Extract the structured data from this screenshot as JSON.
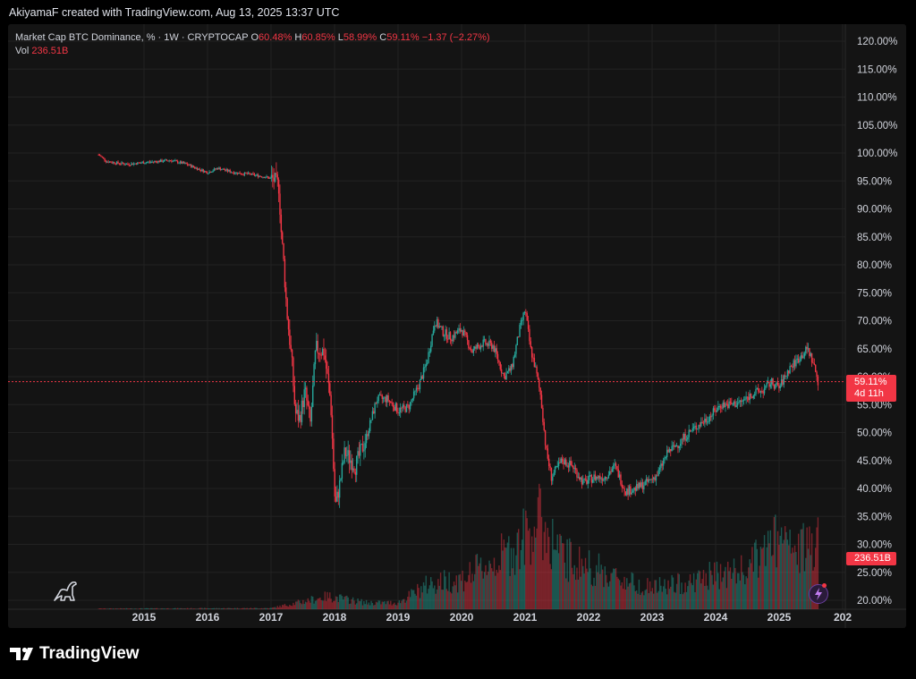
{
  "header": {
    "credit": "AkiyamaF created with TradingView.com, Aug 13, 2025 13:37 UTC"
  },
  "legend": {
    "symbol": "Market Cap BTC Dominance, % · 1W · CRYPTOCAP",
    "o_label": "O",
    "o_value": "60.48%",
    "h_label": "H",
    "h_value": "60.85%",
    "l_label": "L",
    "l_value": "58.99%",
    "c_label": "C",
    "c_value": "59.11%",
    "change": "−1.37 (−2.27%)",
    "vol_label": "Vol",
    "vol_value": "236.51B"
  },
  "badges": {
    "price": "59.11%",
    "countdown": "4d 11h",
    "volume": "236.51B"
  },
  "brand": {
    "name": "TradingView"
  },
  "colors": {
    "up": "#26a69a",
    "down": "#f23645",
    "background": "#141414",
    "grid": "#222222",
    "text": "#d1d4dc"
  },
  "icons": {
    "bottom_left": "dinosaur-icon",
    "bottom_right": "lightning-bolt-icon",
    "brand": "tradingview-logo-icon"
  },
  "chart_data": {
    "type": "candlestick",
    "title": "Market Cap BTC Dominance, % · 1W · CRYPTOCAP",
    "x_ticks": [
      "2015",
      "2016",
      "2017",
      "2018",
      "2019",
      "2020",
      "2021",
      "2022",
      "2023",
      "2024",
      "2025",
      "202"
    ],
    "y_ticks": [
      "120.00%",
      "115.00%",
      "110.00%",
      "105.00%",
      "100.00%",
      "95.00%",
      "90.00%",
      "85.00%",
      "80.00%",
      "75.00%",
      "70.00%",
      "65.00%",
      "60.00%",
      "55.00%",
      "50.00%",
      "45.00%",
      "40.00%",
      "35.00%",
      "30.00%",
      "25.00%",
      "20.00%"
    ],
    "ylim": [
      20,
      120
    ],
    "scale": "linear",
    "grid": true,
    "last_price": 59.11,
    "series": [
      {
        "name": "Market Cap BTC Dominance, %",
        "x": [
          "2014-04-15",
          "2014-06-01",
          "2014-08-01",
          "2014-10-01",
          "2015-01-01",
          "2015-06-01",
          "2015-09-01",
          "2016-01-01",
          "2016-03-01",
          "2016-06-01",
          "2016-09-01",
          "2016-12-01",
          "2017-01-15",
          "2017-02-15",
          "2017-03-01",
          "2017-03-15",
          "2017-04-01",
          "2017-05-01",
          "2017-05-20",
          "2017-06-15",
          "2017-07-15",
          "2017-08-15",
          "2017-09-15",
          "2017-11-01",
          "2017-12-10",
          "2018-01-05",
          "2018-02-01",
          "2018-03-01",
          "2018-05-01",
          "2018-07-01",
          "2018-09-01",
          "2018-11-01",
          "2019-01-01",
          "2019-03-01",
          "2019-05-01",
          "2019-06-15",
          "2019-08-01",
          "2019-09-15",
          "2019-11-01",
          "2020-01-01",
          "2020-03-01",
          "2020-05-01",
          "2020-07-01",
          "2020-09-01",
          "2020-10-15",
          "2020-12-01",
          "2021-01-01",
          "2021-02-01",
          "2021-03-01",
          "2021-04-01",
          "2021-05-01",
          "2021-06-01",
          "2021-08-01",
          "2021-10-01",
          "2021-12-01",
          "2022-02-01",
          "2022-04-01",
          "2022-06-01",
          "2022-08-01",
          "2022-10-01",
          "2022-12-01",
          "2023-02-01",
          "2023-04-01",
          "2023-06-01",
          "2023-08-01",
          "2023-10-01",
          "2023-12-01",
          "2024-02-01",
          "2024-04-01",
          "2024-06-01",
          "2024-08-01",
          "2024-10-01",
          "2024-11-15",
          "2025-01-01",
          "2025-03-01",
          "2025-05-01",
          "2025-06-15",
          "2025-07-15",
          "2025-08-13"
        ],
        "y": [
          99.7,
          98.5,
          98.2,
          98.0,
          98.3,
          98.7,
          98.0,
          96.5,
          97.3,
          96.5,
          96.2,
          95.7,
          95.3,
          94.0,
          85.5,
          80.2,
          72.0,
          62.5,
          53.5,
          52.5,
          57.5,
          51.5,
          65.0,
          64.5,
          55.5,
          36.5,
          41.0,
          46.5,
          44.0,
          49.0,
          56.0,
          56.0,
          54.0,
          54.5,
          58.5,
          62.5,
          70.0,
          68.0,
          67.0,
          68.5,
          64.5,
          66.0,
          65.5,
          60.0,
          61.5,
          68.5,
          72.0,
          65.0,
          61.5,
          56.5,
          47.0,
          42.0,
          45.0,
          44.0,
          41.0,
          42.0,
          42.0,
          44.0,
          39.5,
          40.0,
          41.0,
          42.5,
          46.5,
          48.0,
          50.0,
          51.5,
          53.0,
          55.0,
          55.0,
          55.5,
          57.0,
          57.5,
          59.0,
          58.0,
          61.5,
          63.5,
          65.0,
          62.5,
          59.11
        ]
      }
    ]
  }
}
